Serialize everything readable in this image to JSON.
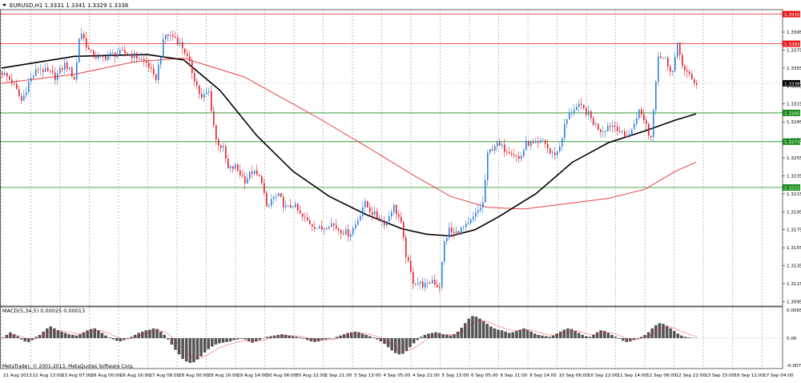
{
  "symbol_line": "EURUSD,H1  1.3331 1.3341 1.3329 1.3338",
  "indicator_line": "MACD(5,34,5) 0.00025 0.00013",
  "copyright": "MetaTrader, © 2001-2013, MetaQuotes Software Corp.",
  "colors": {
    "bull": "#2f7fd8",
    "bear": "#e21f2a",
    "ma_black": "#000000",
    "ma_red": "#e84040",
    "level_red": "#e81818",
    "level_green": "#1a8a1a",
    "grid": "#9a9a9a",
    "histogram": "#555555",
    "signal": "#e03030"
  },
  "chart_data": [
    {
      "type": "candlestick",
      "title": "EURUSD,H1",
      "ylim": [
        1.309,
        1.342
      ],
      "y_ticks": [
        "1.3395",
        "1.3375",
        "1.3355",
        "1.3335",
        "1.3315",
        "1.3295",
        "1.3275",
        "1.3255",
        "1.3235",
        "1.3215",
        "1.3195",
        "1.3175",
        "1.3155",
        "1.3135",
        "1.3115",
        "1.3095"
      ],
      "x_labels": [
        "21 Aug 2013",
        "22 Aug 13:00",
        "23 Aug 07:00",
        "26 Aug 00:00",
        "26 Aug 16:00",
        "27 Aug 08:00",
        "28 Aug 00:00",
        "28 Aug 16:00",
        "29 Aug 14:00",
        "30 Aug 06:00",
        "30 Aug 22:00",
        "2 Sep 21:00",
        "3 Sep 13:00",
        "4 Sep 05:00",
        "4 Sep 21:00",
        "5 Sep 13:00",
        "6 Sep 05:00",
        "6 Sep 21:00",
        "9 Sep 14:00",
        "10 Sep 06:00",
        "10 Sep 22:00",
        "11 Sep 14:00",
        "12 Sep 06:00",
        "12 Sep 22:00",
        "13 Sep 15:00",
        "16 Sep 12:00",
        "17 Sep 04:00"
      ],
      "price_labels": [
        {
          "text": "1.3415",
          "value": 1.3415,
          "color": "red"
        },
        {
          "text": "1.3382",
          "value": 1.3382,
          "color": "red"
        },
        {
          "text": "1.3338",
          "value": 1.3338,
          "color": "black"
        },
        {
          "text": "1.3305",
          "value": 1.3305,
          "color": "green"
        },
        {
          "text": "1.3273",
          "value": 1.3273,
          "color": "green"
        },
        {
          "text": "1.3222",
          "value": 1.3222,
          "color": "green"
        }
      ],
      "horizontal_levels": [
        {
          "value": 1.3415,
          "color": "red"
        },
        {
          "value": 1.3382,
          "color": "red"
        },
        {
          "value": 1.3305,
          "color": "green"
        },
        {
          "value": 1.3273,
          "color": "green"
        },
        {
          "value": 1.3222,
          "color": "green"
        }
      ],
      "current_price": 1.3338,
      "price_path": [
        [
          0,
          1.335
        ],
        [
          8,
          1.334
        ],
        [
          16,
          1.3318
        ],
        [
          22,
          1.334
        ],
        [
          30,
          1.3355
        ],
        [
          38,
          1.335
        ],
        [
          44,
          1.3345
        ],
        [
          52,
          1.336
        ],
        [
          60,
          1.3342
        ],
        [
          64,
          1.3398
        ],
        [
          72,
          1.3372
        ],
        [
          80,
          1.3365
        ],
        [
          90,
          1.337
        ],
        [
          100,
          1.3372
        ],
        [
          110,
          1.3368
        ],
        [
          120,
          1.336
        ],
        [
          126,
          1.334
        ],
        [
          134,
          1.3392
        ],
        [
          142,
          1.339
        ],
        [
          150,
          1.3375
        ],
        [
          158,
          1.3345
        ],
        [
          164,
          1.332
        ],
        [
          170,
          1.333
        ],
        [
          176,
          1.3275
        ],
        [
          182,
          1.3265
        ],
        [
          186,
          1.3242
        ],
        [
          192,
          1.3245
        ],
        [
          200,
          1.323
        ],
        [
          206,
          1.324
        ],
        [
          214,
          1.323
        ],
        [
          218,
          1.3195
        ],
        [
          222,
          1.321
        ],
        [
          228,
          1.3212
        ],
        [
          234,
          1.3198
        ],
        [
          240,
          1.3203
        ],
        [
          246,
          1.319
        ],
        [
          254,
          1.3182
        ],
        [
          262,
          1.3175
        ],
        [
          270,
          1.3183
        ],
        [
          278,
          1.3175
        ],
        [
          286,
          1.317
        ],
        [
          292,
          1.3183
        ],
        [
          298,
          1.3205
        ],
        [
          304,
          1.3195
        ],
        [
          310,
          1.3188
        ],
        [
          316,
          1.3182
        ],
        [
          322,
          1.3202
        ],
        [
          328,
          1.3185
        ],
        [
          332,
          1.315
        ],
        [
          338,
          1.3118
        ],
        [
          344,
          1.3115
        ],
        [
          350,
          1.3112
        ],
        [
          354,
          1.312
        ],
        [
          360,
          1.311
        ],
        [
          364,
          1.316
        ],
        [
          368,
          1.3175
        ],
        [
          372,
          1.317
        ],
        [
          378,
          1.3175
        ],
        [
          384,
          1.318
        ],
        [
          390,
          1.3192
        ],
        [
          396,
          1.3205
        ],
        [
          400,
          1.326
        ],
        [
          406,
          1.327
        ],
        [
          414,
          1.3265
        ],
        [
          420,
          1.3262
        ],
        [
          426,
          1.3253
        ],
        [
          432,
          1.3272
        ],
        [
          440,
          1.3268
        ],
        [
          446,
          1.3275
        ],
        [
          452,
          1.3258
        ],
        [
          458,
          1.3262
        ],
        [
          464,
          1.3295
        ],
        [
          470,
          1.331
        ],
        [
          476,
          1.3312
        ],
        [
          482,
          1.3305
        ],
        [
          488,
          1.3292
        ],
        [
          494,
          1.3285
        ],
        [
          500,
          1.3292
        ],
        [
          506,
          1.329
        ],
        [
          512,
          1.3278
        ],
        [
          518,
          1.3283
        ],
        [
          524,
          1.3308
        ],
        [
          530,
          1.3295
        ],
        [
          534,
          1.3272
        ],
        [
          540,
          1.337
        ],
        [
          546,
          1.3365
        ],
        [
          552,
          1.335
        ],
        [
          556,
          1.338
        ],
        [
          562,
          1.3352
        ],
        [
          568,
          1.3342
        ],
        [
          572,
          1.3338
        ]
      ],
      "ma_black": [
        [
          0,
          1.3355
        ],
        [
          60,
          1.3368
        ],
        [
          120,
          1.337
        ],
        [
          150,
          1.3364
        ],
        [
          180,
          1.333
        ],
        [
          210,
          1.328
        ],
        [
          240,
          1.324
        ],
        [
          270,
          1.3212
        ],
        [
          300,
          1.3192
        ],
        [
          330,
          1.3176
        ],
        [
          350,
          1.317
        ],
        [
          370,
          1.3168
        ],
        [
          390,
          1.3175
        ],
        [
          410,
          1.319
        ],
        [
          440,
          1.3215
        ],
        [
          470,
          1.325
        ],
        [
          500,
          1.3272
        ],
        [
          530,
          1.3285
        ],
        [
          555,
          1.3297
        ],
        [
          572,
          1.3304
        ]
      ],
      "ma_red": [
        [
          0,
          1.3338
        ],
        [
          60,
          1.3348
        ],
        [
          110,
          1.3362
        ],
        [
          150,
          1.3366
        ],
        [
          200,
          1.3345
        ],
        [
          260,
          1.33
        ],
        [
          300,
          1.3268
        ],
        [
          340,
          1.3235
        ],
        [
          370,
          1.3212
        ],
        [
          400,
          1.32
        ],
        [
          430,
          1.3198
        ],
        [
          460,
          1.3203
        ],
        [
          500,
          1.321
        ],
        [
          530,
          1.322
        ],
        [
          555,
          1.324
        ],
        [
          572,
          1.325
        ]
      ]
    },
    {
      "type": "bar",
      "title": "MACD(5,34,5)",
      "ylim": [
        -0.0009,
        0.0008
      ],
      "y_ticks": [
        "0.00654",
        "0.00",
        "-0.00750"
      ],
      "histogram": [
        2e-05,
        0.0001,
        0.00018,
        0.00012,
        6e-05,
        -4e-05,
        -0.0001,
        -0.00012,
        -6e-05,
        4e-05,
        0.0001,
        0.0002,
        0.0003,
        0.00036,
        0.0003,
        0.00024,
        0.0002,
        0.00016,
        0.00012,
        0.0001,
        8e-05,
        0.00012,
        0.00018,
        0.00024,
        0.00028,
        0.0003,
        0.00024,
        0.00016,
        8e-05,
        2e-05,
        -4e-05,
        -8e-05,
        -0.0001,
        -6e-05,
        -2e-05,
        4e-05,
        0.0001,
        0.00016,
        0.0002,
        0.00024,
        0.00026,
        0.0003,
        0.00028,
        0.0002,
        0.0001,
        -4e-05,
        -0.0002,
        -0.00036,
        -0.0005,
        -0.00064,
        -0.00072,
        -0.00076,
        -0.00074,
        -0.00066,
        -0.00056,
        -0.00044,
        -0.00034,
        -0.00026,
        -0.0002,
        -0.00016,
        -0.00014,
        -0.00012,
        -0.0001,
        -6e-05,
        -4e-05,
        -2e-05,
        -4e-05,
        -0.0001,
        -0.00014,
        -0.0001,
        -6e-05,
        0.0,
        4e-05,
        6e-05,
        8e-05,
        0.0001,
        0.00012,
        0.0001,
        8e-05,
        6e-05,
        4e-05,
        2e-05,
        -2e-05,
        -6e-05,
        -0.0001,
        -0.00012,
        -0.0001,
        -6e-05,
        -4e-05,
        -2e-05,
        0.0,
        4e-05,
        8e-05,
        0.00012,
        0.00016,
        0.00018,
        0.0002,
        0.00018,
        0.00014,
        0.0001,
        6e-05,
        2e-05,
        -4e-05,
        -0.0001,
        -0.00018,
        -0.00028,
        -0.00038,
        -0.00046,
        -0.0005,
        -0.00048,
        -0.0004,
        -0.00028,
        -0.00016,
        -6e-05,
        4e-05,
        0.0001,
        0.00014,
        0.00016,
        0.00018,
        0.00016,
        0.00012,
        0.0001,
        8e-05,
        0.00012,
        0.0002,
        0.00032,
        0.00046,
        0.0006,
        0.00068,
        0.00066,
        0.0006,
        0.00052,
        0.00044,
        0.00036,
        0.0003,
        0.00026,
        0.00024,
        0.0002,
        0.00016,
        0.00018,
        0.00022,
        0.00026,
        0.0003,
        0.00026,
        0.0002,
        0.00014,
        0.0001,
        8e-05,
        6e-05,
        4e-05,
        8e-05,
        0.00014,
        0.0002,
        0.00026,
        0.0003,
        0.00028,
        0.00022,
        0.00016,
        0.0001,
        6e-05,
        4e-05,
        0.0001,
        0.00018,
        0.00024,
        0.00022,
        0.00016,
        0.0001,
        4e-05,
        -2e-05,
        -8e-05,
        -0.00012,
        -0.0001,
        -6e-05,
        -2e-05,
        4e-05,
        0.0001,
        0.00018,
        0.0003,
        0.0004,
        0.00046,
        0.00044,
        0.00038,
        0.0003,
        0.00022,
        0.00014,
        8e-05,
        4e-05,
        2e-05,
        1e-05,
        1e-05
      ]
    }
  ]
}
